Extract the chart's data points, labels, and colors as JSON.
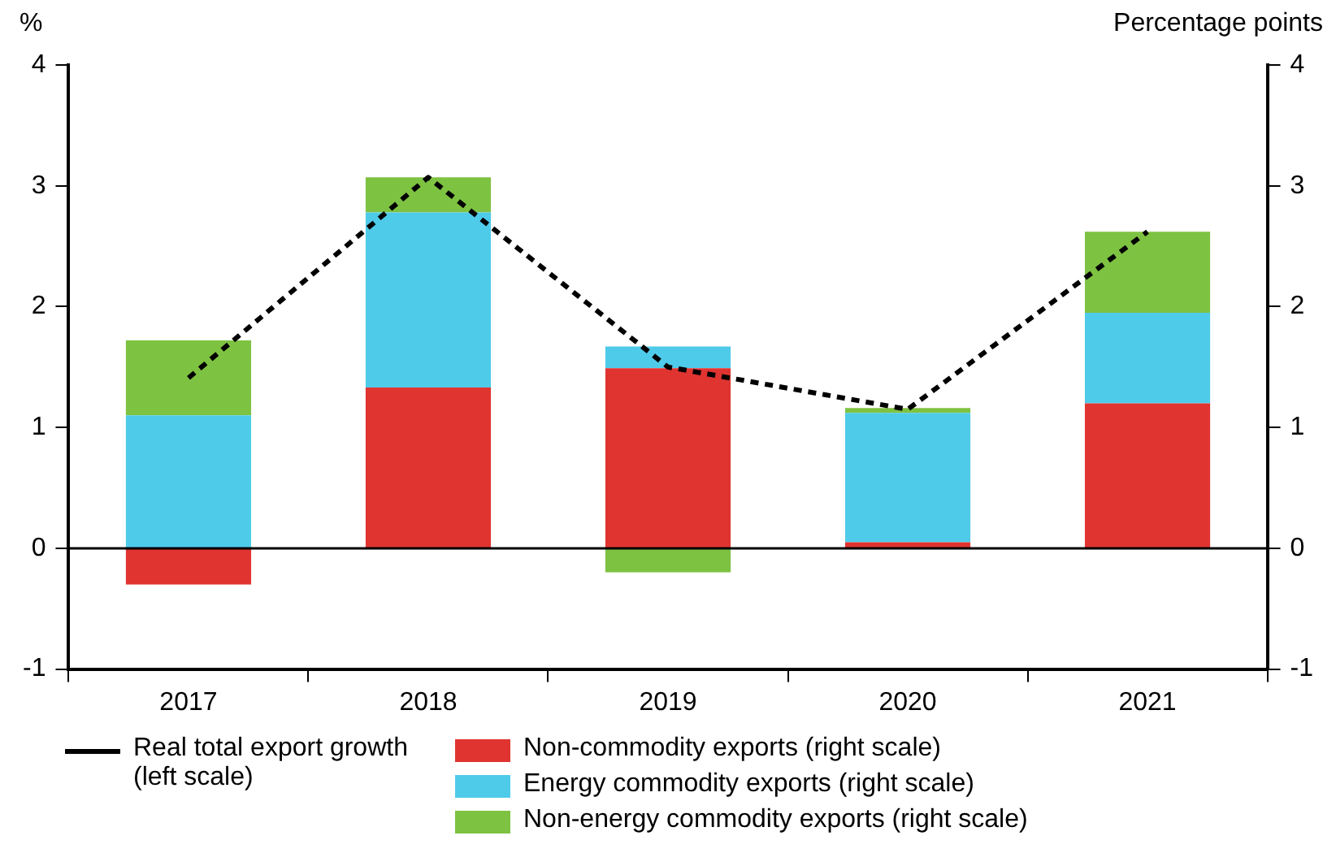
{
  "chart_data": {
    "type": "bar",
    "stacked": true,
    "ylabel": "%",
    "y2label": "Percentage points",
    "categories": [
      "2017",
      "2018",
      "2019",
      "2020",
      "2021"
    ],
    "series": [
      {
        "name": "Non-commodity exports (right scale)",
        "color": "#e03431",
        "values": [
          -0.3,
          1.33,
          1.49,
          0.05,
          1.2
        ]
      },
      {
        "name": "Energy commodity exports (right scale)",
        "color": "#4fcbea",
        "values": [
          1.1,
          1.45,
          0.18,
          1.07,
          0.75
        ]
      },
      {
        "name": "Non-energy commodity exports (right scale)",
        "color": "#7ec242",
        "values": [
          0.62,
          0.29,
          -0.2,
          0.04,
          0.67
        ]
      },
      {
        "name": "Real total export growth (left scale)",
        "type": "line",
        "color": "#000000",
        "line_style": "dashed",
        "marker": "none",
        "values": [
          1.41,
          3.07,
          1.5,
          1.15,
          2.62
        ]
      }
    ],
    "ylim": [
      -1,
      4
    ],
    "yticks": [
      -1,
      0,
      1,
      2,
      3,
      4
    ],
    "y2lim": [
      -1,
      4
    ],
    "y2ticks": [
      -1,
      0,
      1,
      2,
      3,
      4
    ],
    "ref_lines": [
      {
        "axis": "y",
        "value": 0,
        "color": "#000000"
      }
    ],
    "grid": false,
    "legend": "bottom"
  }
}
